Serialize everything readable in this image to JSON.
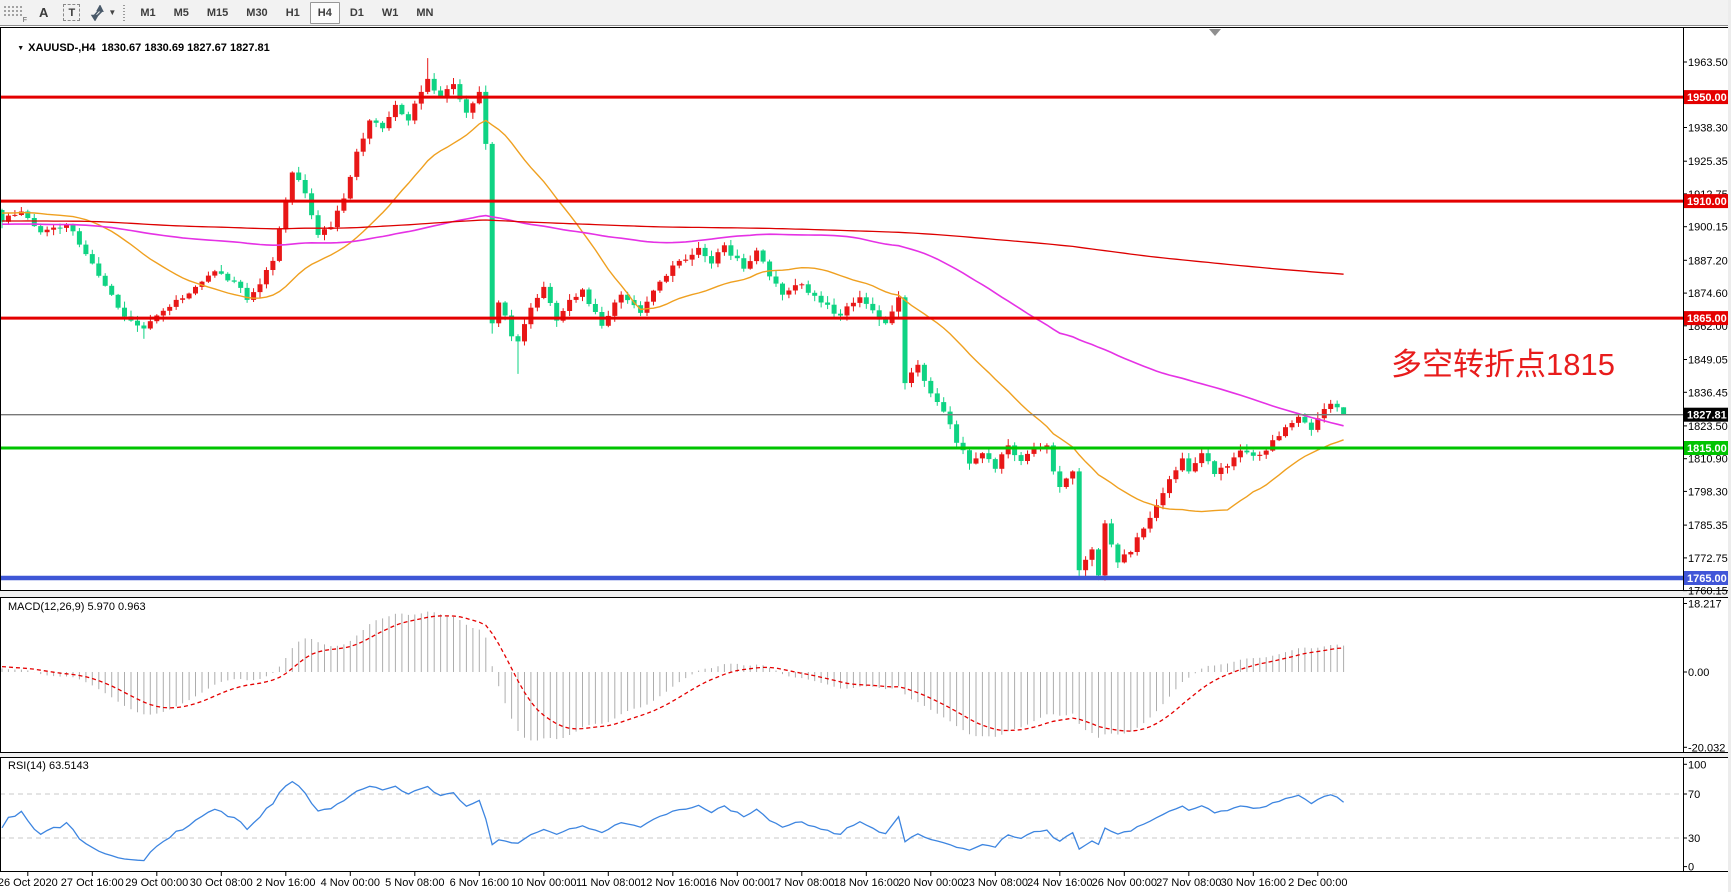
{
  "toolbar": {
    "grip_label": "F",
    "a_tool": "A",
    "t_tool": "T",
    "timeframes": [
      {
        "label": "M1",
        "active": false
      },
      {
        "label": "M5",
        "active": false
      },
      {
        "label": "M15",
        "active": false
      },
      {
        "label": "M30",
        "active": false
      },
      {
        "label": "H1",
        "active": false
      },
      {
        "label": "H4",
        "active": true
      },
      {
        "label": "D1",
        "active": false
      },
      {
        "label": "W1",
        "active": false
      },
      {
        "label": "MN",
        "active": false
      }
    ]
  },
  "chart": {
    "title": "XAUUSD-,H4  1830.67 1830.69 1827.67 1827.81",
    "symbol": "XAUUSD-",
    "period": "H4",
    "ohlc": {
      "open": "1830.67",
      "high": "1830.69",
      "low": "1827.67",
      "close": "1827.81"
    }
  },
  "annotation": {
    "text": "多空转折点1815",
    "color": "#e81c1c"
  },
  "indicators": {
    "macd": {
      "label": "MACD(12,26,9) 5.970 0.963",
      "axis_ticks": [
        "18.217",
        "0.00",
        "-20.032"
      ]
    },
    "rsi": {
      "label": "RSI(14) 63.5143",
      "axis_ticks": [
        "100",
        "70",
        "30",
        "0"
      ]
    }
  },
  "price_axis": {
    "ticks": [
      1963.5,
      1938.3,
      1925.35,
      1912.75,
      1900.15,
      1887.2,
      1874.6,
      1862.0,
      1849.05,
      1836.45,
      1823.5,
      1810.9,
      1798.3,
      1785.35,
      1772.75,
      1760.15
    ],
    "badges": [
      {
        "text": "1950.00",
        "price": 1950.0,
        "color": "#e40000"
      },
      {
        "text": "1910.00",
        "price": 1910.0,
        "color": "#e40000"
      },
      {
        "text": "1865.00",
        "price": 1865.0,
        "color": "#e40000"
      },
      {
        "text": "1827.81",
        "price": 1827.81,
        "color": "#000000"
      },
      {
        "text": "1815.00",
        "price": 1815.0,
        "color": "#00c400"
      },
      {
        "text": "1765.00",
        "price": 1765.0,
        "color": "#4156d8"
      }
    ]
  },
  "time_axis": {
    "labels": [
      "26 Oct 2020",
      "27 Oct 16:00",
      "29 Oct 00:00",
      "30 Oct 08:00",
      "2 Nov 16:00",
      "4 Nov 00:00",
      "5 Nov 08:00",
      "6 Nov 16:00",
      "10 Nov 00:00",
      "11 Nov 08:00",
      "12 Nov 16:00",
      "16 Nov 00:00",
      "17 Nov 08:00",
      "18 Nov 16:00",
      "20 Nov 00:00",
      "23 Nov 08:00",
      "24 Nov 16:00",
      "26 Nov 00:00",
      "27 Nov 08:00",
      "30 Nov 16:00",
      "2 Dec 00:00"
    ]
  },
  "chart_data": {
    "type": "candlestick",
    "symbol": "XAUUSD-",
    "timeframe": "H4",
    "bars": 209,
    "up_color": "#e81717",
    "down_color": "#0fd383",
    "price_range": [
      1760.15,
      1963.5
    ],
    "close_waypoints": [
      [
        0,
        1902
      ],
      [
        3,
        1906
      ],
      [
        6,
        1898
      ],
      [
        10,
        1901
      ],
      [
        14,
        1886
      ],
      [
        18,
        1869
      ],
      [
        20,
        1864
      ],
      [
        22,
        1861
      ],
      [
        24,
        1866
      ],
      [
        27,
        1872
      ],
      [
        30,
        1877
      ],
      [
        33,
        1883
      ],
      [
        36,
        1879
      ],
      [
        38,
        1872
      ],
      [
        40,
        1878
      ],
      [
        42,
        1887
      ],
      [
        45,
        1921
      ],
      [
        47,
        1913
      ],
      [
        49,
        1897
      ],
      [
        51,
        1900
      ],
      [
        53,
        1911
      ],
      [
        55,
        1929
      ],
      [
        57,
        1941
      ],
      [
        59,
        1938
      ],
      [
        61,
        1947
      ],
      [
        63,
        1941
      ],
      [
        65,
        1952
      ],
      [
        66,
        1957
      ],
      [
        68,
        1950
      ],
      [
        70,
        1955
      ],
      [
        72,
        1944
      ],
      [
        74,
        1952
      ],
      [
        75,
        1932
      ],
      [
        76,
        1863
      ],
      [
        77,
        1871
      ],
      [
        78,
        1866
      ],
      [
        79,
        1858
      ],
      [
        80,
        1856
      ],
      [
        82,
        1869
      ],
      [
        84,
        1877
      ],
      [
        86,
        1864
      ],
      [
        88,
        1872
      ],
      [
        90,
        1876
      ],
      [
        93,
        1862
      ],
      [
        96,
        1874
      ],
      [
        99,
        1867
      ],
      [
        102,
        1879
      ],
      [
        105,
        1887
      ],
      [
        108,
        1892
      ],
      [
        110,
        1886
      ],
      [
        112,
        1893
      ],
      [
        115,
        1884
      ],
      [
        117,
        1891
      ],
      [
        119,
        1881
      ],
      [
        121,
        1874
      ],
      [
        124,
        1878
      ],
      [
        127,
        1871
      ],
      [
        130,
        1866
      ],
      [
        133,
        1873
      ],
      [
        135,
        1868
      ],
      [
        137,
        1863
      ],
      [
        139,
        1873
      ],
      [
        140,
        1840
      ],
      [
        142,
        1847
      ],
      [
        144,
        1836
      ],
      [
        146,
        1829
      ],
      [
        148,
        1817
      ],
      [
        150,
        1809
      ],
      [
        152,
        1813
      ],
      [
        154,
        1807
      ],
      [
        156,
        1816
      ],
      [
        158,
        1810
      ],
      [
        160,
        1815
      ],
      [
        162,
        1816
      ],
      [
        163,
        1806
      ],
      [
        164,
        1800
      ],
      [
        166,
        1806
      ],
      [
        167,
        1768
      ],
      [
        168,
        1772
      ],
      [
        169,
        1776
      ],
      [
        170,
        1766
      ],
      [
        171,
        1786
      ],
      [
        173,
        1771
      ],
      [
        175,
        1775
      ],
      [
        177,
        1784
      ],
      [
        179,
        1793
      ],
      [
        181,
        1803
      ],
      [
        183,
        1811
      ],
      [
        184,
        1806
      ],
      [
        186,
        1813
      ],
      [
        188,
        1805
      ],
      [
        190,
        1808
      ],
      [
        192,
        1814
      ],
      [
        194,
        1812
      ],
      [
        196,
        1814
      ],
      [
        197,
        1818
      ],
      [
        199,
        1823
      ],
      [
        201,
        1827
      ],
      [
        203,
        1822
      ],
      [
        205,
        1830
      ],
      [
        206,
        1832
      ],
      [
        207,
        1830.67
      ],
      [
        208,
        1827.81
      ]
    ],
    "wick_overrides": {
      "22": {
        "low": 1857
      },
      "66": {
        "high": 1965
      },
      "76": {
        "low": 1859
      },
      "80": {
        "low": 1843.5
      },
      "167": {
        "low": 1764.3
      },
      "170": {
        "low": 1764.2
      },
      "208": {
        "high": 1830.69,
        "low": 1827.67
      }
    },
    "last_bar": {
      "open": 1830.67,
      "high": 1830.69,
      "low": 1827.67,
      "close": 1827.81
    },
    "h_lines": [
      {
        "price": 1950.0,
        "color": "#e40000",
        "width": 3
      },
      {
        "price": 1910.0,
        "color": "#e40000",
        "width": 3
      },
      {
        "price": 1865.0,
        "color": "#e40000",
        "width": 3
      },
      {
        "price": 1815.0,
        "color": "#00c400",
        "width": 3
      },
      {
        "price": 1765.0,
        "color": "#3e57d6",
        "width": 4.5
      }
    ],
    "current_price": 1827.81,
    "current_price_line_color": "#787878",
    "ma_lines": [
      {
        "name": "fast-ma",
        "color": "#efa020",
        "period": 24,
        "width": 1.4
      },
      {
        "name": "mid-ma",
        "color": "#e532e5",
        "period": 89,
        "width": 1.6
      },
      {
        "name": "slow-ma",
        "color": "#dd0000",
        "period": 400,
        "width": 1.3
      }
    ],
    "macd": {
      "fast": 12,
      "slow": 26,
      "signal": 9,
      "display_max": 18.217,
      "display_min": -20.032,
      "last_main": 5.97,
      "last_signal": 0.963,
      "hist_color": "#adadad",
      "signal_color": "#e40000"
    },
    "rsi": {
      "period": 14,
      "last": 63.5143,
      "color": "#3d85e0",
      "levels": [
        70,
        30
      ],
      "level_color": "#c8c8c8"
    }
  }
}
